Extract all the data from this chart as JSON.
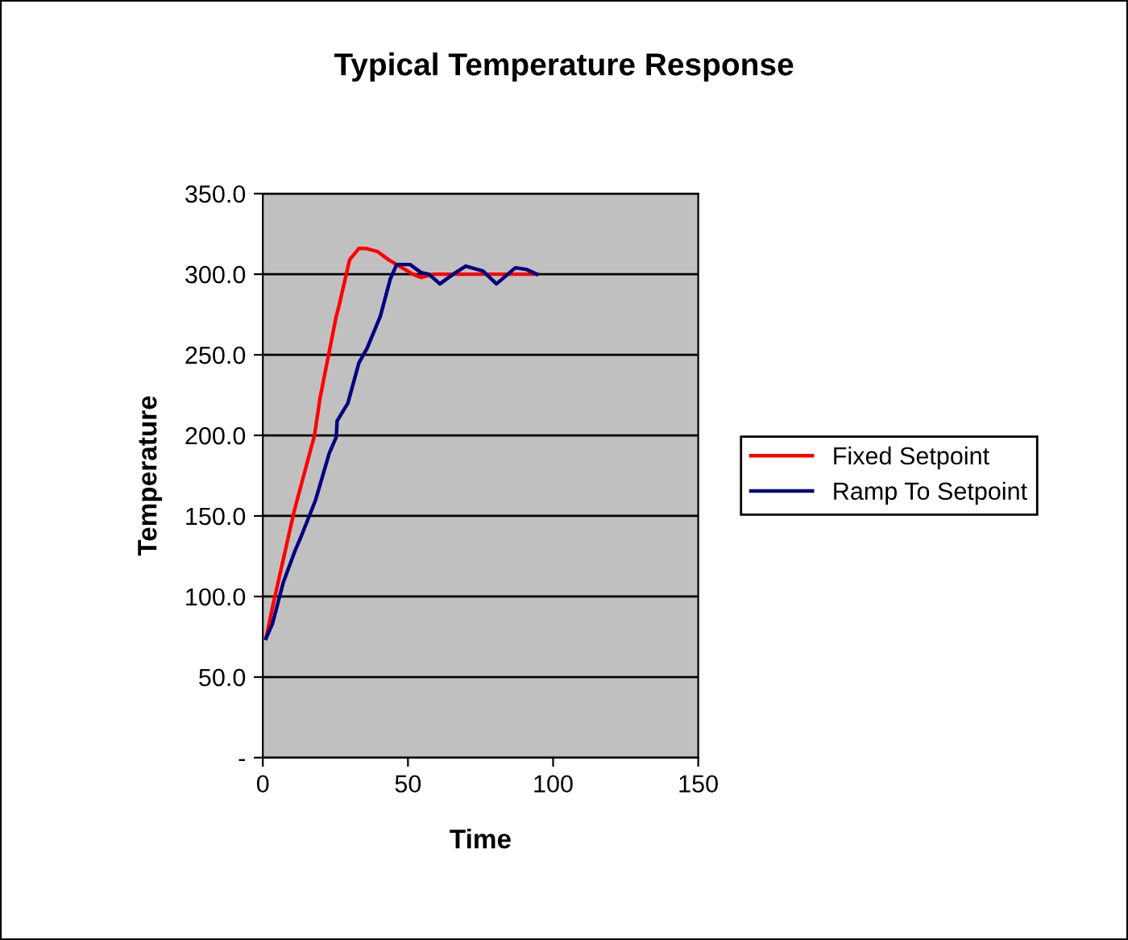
{
  "chart_data": {
    "type": "line",
    "title": "Typical Temperature Response",
    "xlabel": "Time",
    "ylabel": "Temperature",
    "series": [
      {
        "name": "Fixed Setpoint",
        "color": "#ff0000",
        "x": [
          1.1,
          3.3,
          10.8,
          17.8,
          19.7,
          25.3,
          26.2,
          29.9,
          33.1,
          35.5,
          39.6,
          43.3,
          47,
          51.7,
          54.5,
          59.1,
          70.3,
          83.3,
          94.4
        ],
        "values": [
          74,
          93,
          153,
          200,
          223,
          274,
          280,
          309,
          316,
          316,
          314,
          309,
          305,
          300,
          298,
          300,
          300,
          300,
          300
        ]
      },
      {
        "name": "Ramp To Setpoint",
        "color": "#000080",
        "x": [
          1.1,
          3.3,
          7.1,
          10.8,
          13.6,
          18.2,
          22.9,
          25.3,
          25.6,
          29.3,
          33.1,
          35.9,
          40.5,
          43.9,
          46.1,
          50.7,
          54.5,
          57.2,
          61,
          65.6,
          69.9,
          75.8,
          80.5,
          87,
          90.7,
          94.4
        ],
        "values": [
          74,
          83,
          109,
          127,
          139,
          160,
          189,
          199,
          209,
          220,
          245,
          254,
          274,
          297,
          306,
          306,
          301,
          300,
          294,
          300,
          305,
          302,
          294,
          304,
          303,
          300
        ]
      }
    ],
    "xlim": [
      0,
      150
    ],
    "xticks": [
      0,
      50,
      100,
      150
    ],
    "ylim": [
      0,
      350
    ],
    "yticks": [
      {
        "value": 0,
        "label": "-"
      },
      {
        "value": 50,
        "label": "50.0"
      },
      {
        "value": 100,
        "label": "100.0"
      },
      {
        "value": 150,
        "label": "150.0"
      },
      {
        "value": 200,
        "label": "200.0"
      },
      {
        "value": 250,
        "label": "250.0"
      },
      {
        "value": 300,
        "label": "300.0"
      },
      {
        "value": 350,
        "label": "350.0"
      }
    ],
    "grid": "y",
    "legend": "right",
    "marker": "none",
    "line_style": "solid"
  }
}
